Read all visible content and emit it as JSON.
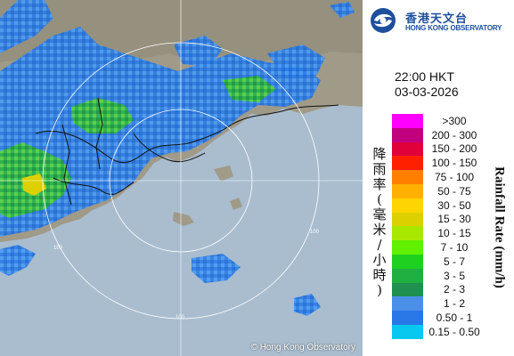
{
  "map": {
    "copyright": "© Hong Kong Observatory",
    "ring_labels": [
      "100",
      "100",
      "100"
    ]
  },
  "logo": {
    "chinese": "香港天文台",
    "english": "HONG KONG OBSERVATORY"
  },
  "timestamp": {
    "time": "22:00 HKT",
    "date": "03-03-2026"
  },
  "legend": {
    "title_cn": [
      "降",
      "雨",
      "率",
      "(",
      "毫",
      "米",
      "/",
      "小",
      "時",
      ")"
    ],
    "title_en": "Rainfall Rate (mm/h)",
    "items": [
      {
        "label": ">300",
        "color": "#ff00ff"
      },
      {
        "label": "200 - 300",
        "color": "#c0007f"
      },
      {
        "label": "150 - 200",
        "color": "#e0003a"
      },
      {
        "label": "100 - 150",
        "color": "#ff2000"
      },
      {
        "label": "75 - 100",
        "color": "#ff8000"
      },
      {
        "label": "50 - 75",
        "color": "#ffb000"
      },
      {
        "label": "30 - 50",
        "color": "#ffd500"
      },
      {
        "label": "15 - 30",
        "color": "#ddd000"
      },
      {
        "label": "10 - 15",
        "color": "#a8e800"
      },
      {
        "label": "7 - 10",
        "color": "#60f000"
      },
      {
        "label": "5 - 7",
        "color": "#20d020"
      },
      {
        "label": "3 - 5",
        "color": "#20b040"
      },
      {
        "label": "2 - 3",
        "color": "#209050"
      },
      {
        "label": "1 - 2",
        "color": "#4a90e8"
      },
      {
        "label": "0.50 - 1",
        "color": "#2a78e8"
      },
      {
        "label": "0.15 - 0.50",
        "color": "#08c8f0"
      }
    ]
  }
}
